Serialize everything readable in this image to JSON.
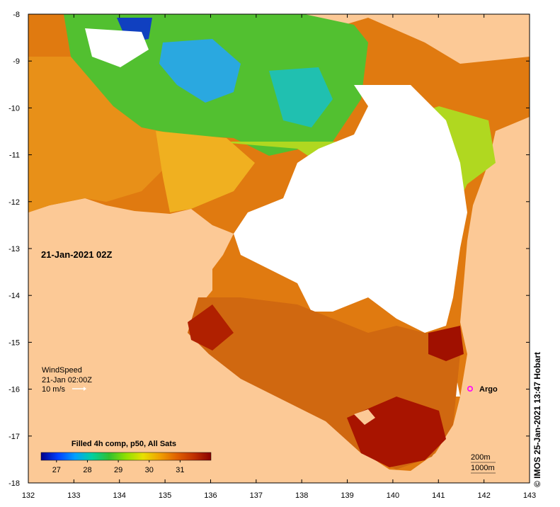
{
  "map": {
    "timestamp_label": "21-Jan-2021 02Z",
    "credit": "© IMOS 25-Jan-2021 13:47 Hobart",
    "land_color": "#fcc996",
    "frame_color": "#000000",
    "x_axis": {
      "ticks": [
        "132",
        "133",
        "134",
        "135",
        "136",
        "137",
        "138",
        "139",
        "140",
        "141",
        "142",
        "143"
      ]
    },
    "y_axis": {
      "ticks": [
        "-8",
        "-9",
        "-10",
        "-11",
        "-12",
        "-13",
        "-14",
        "-15",
        "-16",
        "-17",
        "-18"
      ]
    },
    "wind_legend": {
      "title": "WindSpeed",
      "time": "21-Jan 02:00Z",
      "scale_label": "10 m/s"
    },
    "colorbar": {
      "title": "Filled 4h comp, p50, All Sats",
      "tick_labels": [
        "27",
        "28",
        "29",
        "30",
        "31"
      ],
      "tick_values": [
        27,
        28,
        29,
        30,
        31
      ],
      "min": 26.5,
      "max": 32.0,
      "stops": [
        "#00008b",
        "#0040ff",
        "#00a0ff",
        "#00d0a0",
        "#30c030",
        "#90e000",
        "#e8e000",
        "#f0a000",
        "#e06000",
        "#c03000",
        "#8b0000"
      ]
    },
    "argo": {
      "label": "Argo",
      "marker_color": "#ff00ff"
    },
    "contours": {
      "labels": [
        "200m",
        "1000m"
      ]
    }
  }
}
